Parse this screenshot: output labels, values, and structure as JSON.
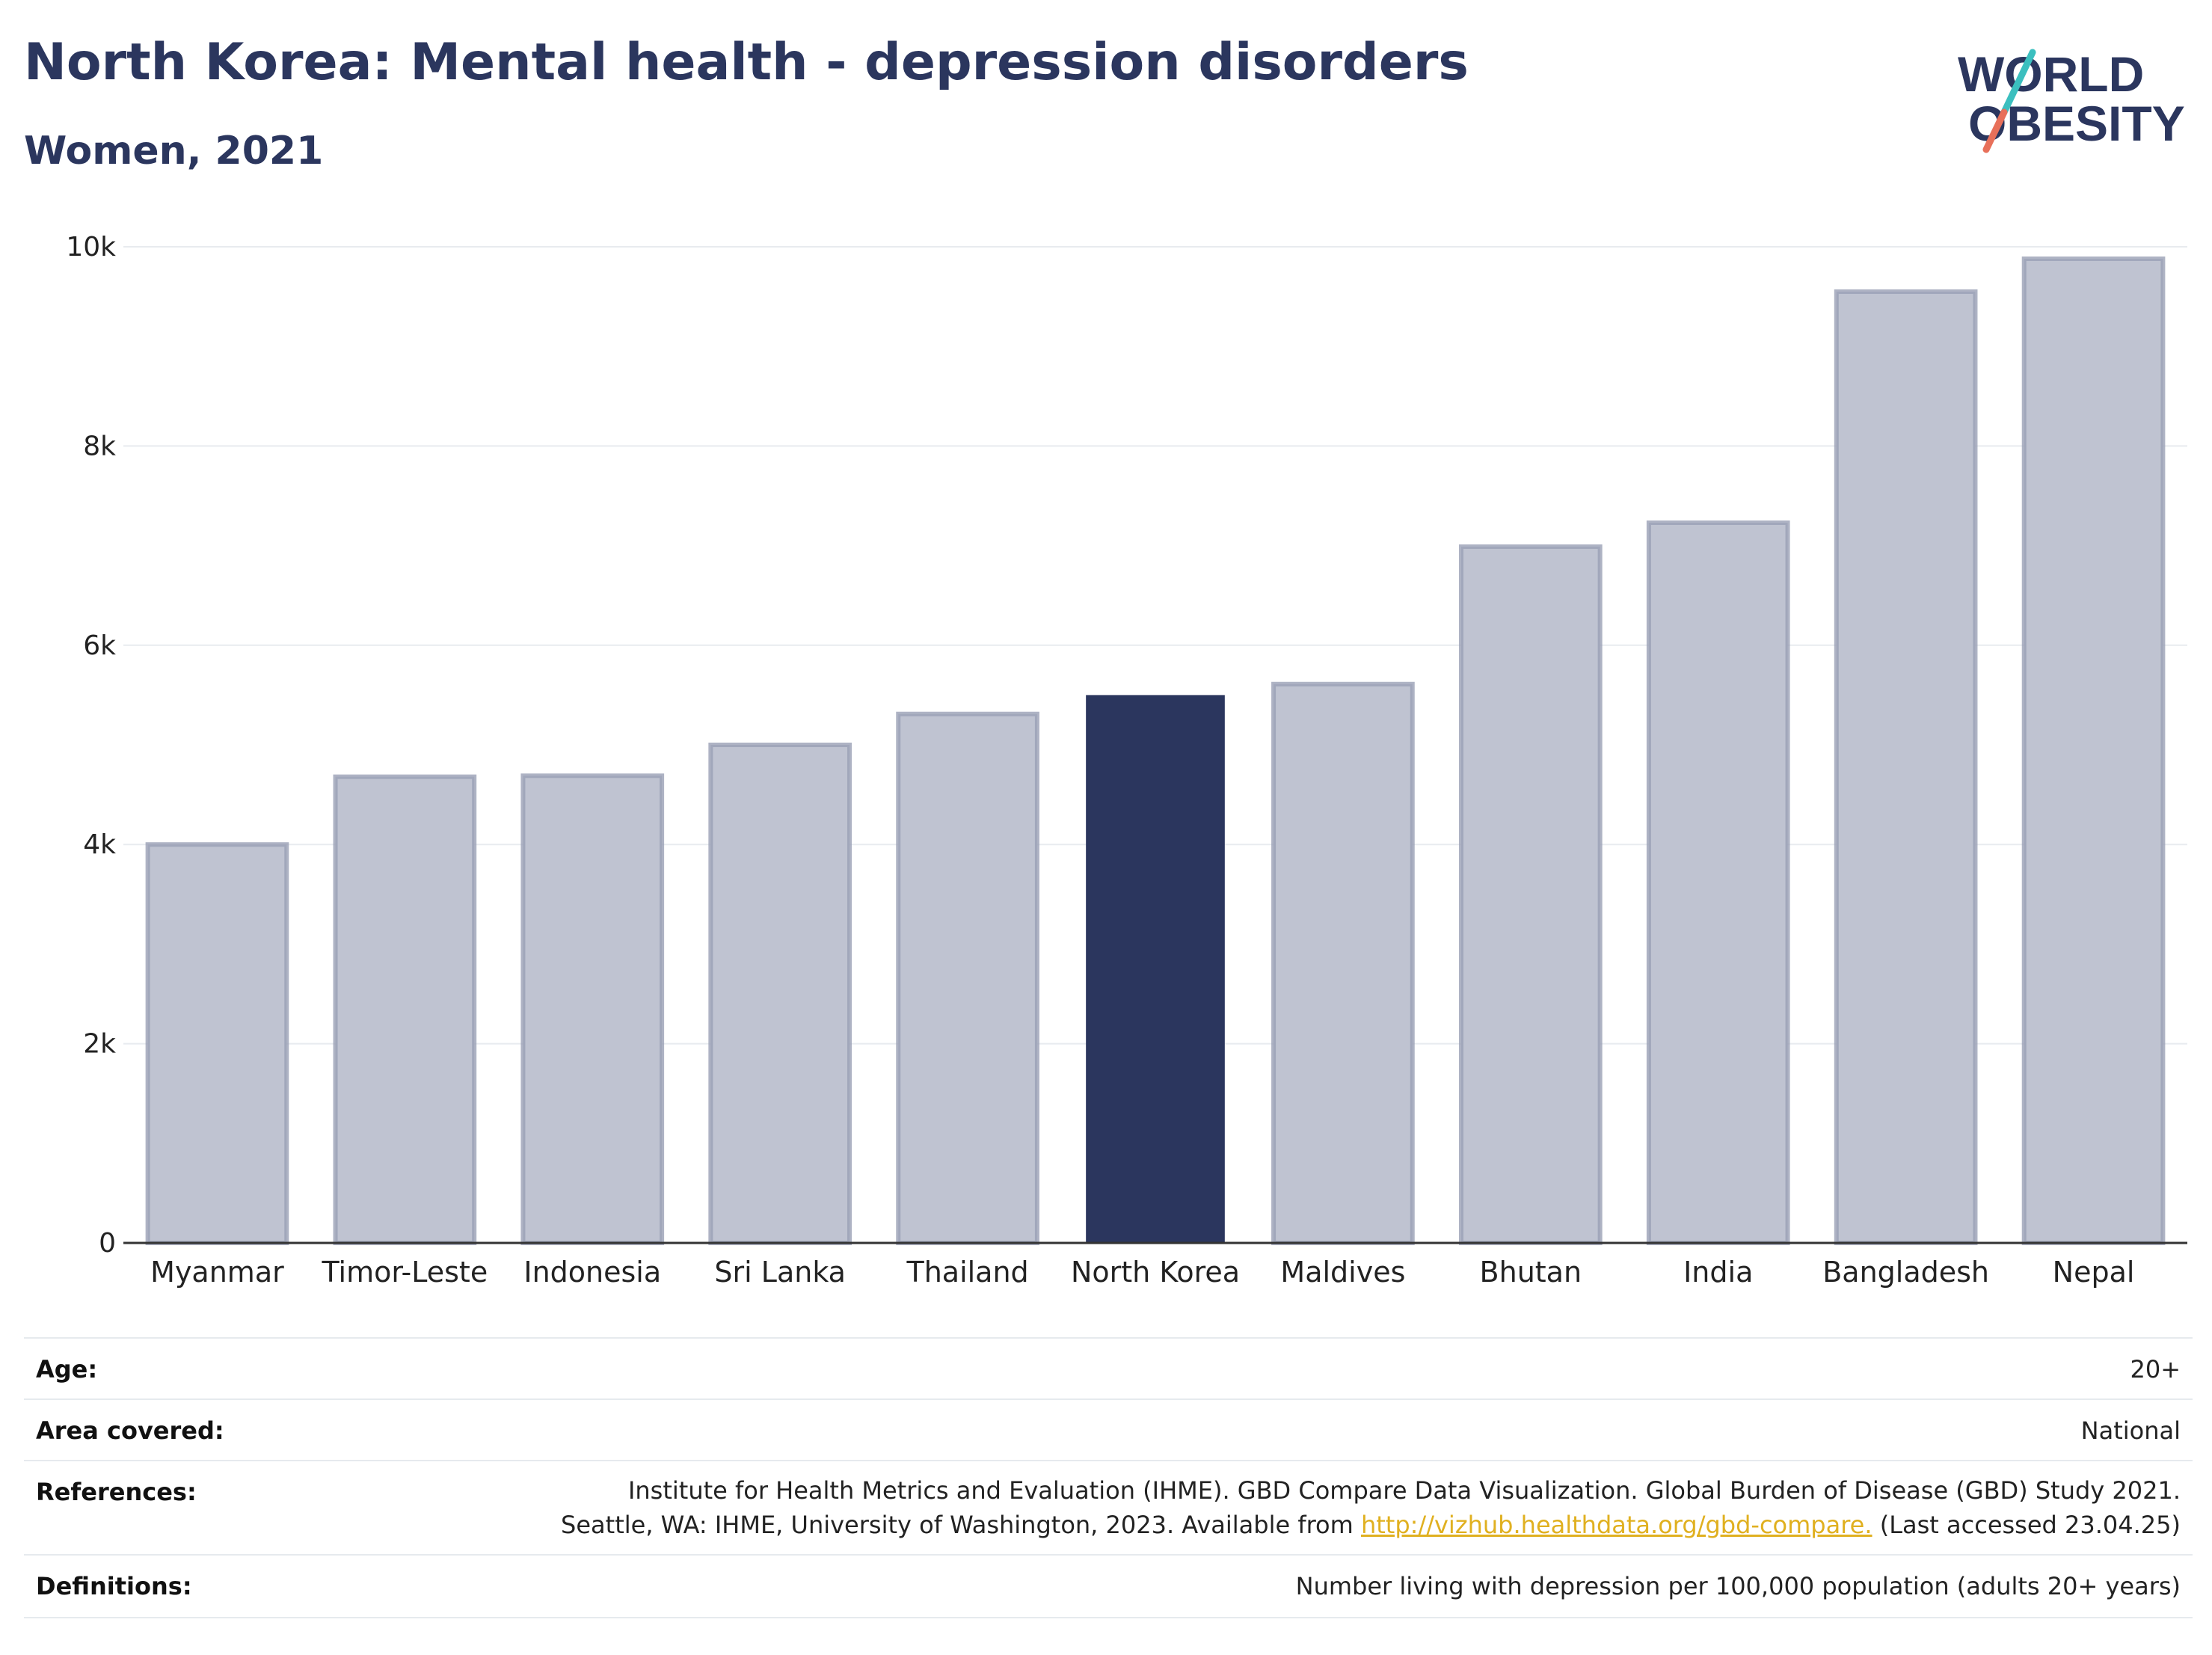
{
  "header": {
    "title": "North Korea: Mental health - depression disorders",
    "subtitle": "Women, 2021"
  },
  "logo": {
    "line1": "WORLD",
    "line2": "OBESITY",
    "colors": {
      "text": "#2b365e",
      "slash_top": "#3bbfbf",
      "slash_bottom": "#e8705a"
    }
  },
  "chart_data": {
    "type": "bar",
    "categories": [
      "Myanmar",
      "Timor-Leste",
      "Indonesia",
      "Sri Lanka",
      "Thailand",
      "North Korea",
      "Maldives",
      "Bhutan",
      "India",
      "Bangladesh",
      "Nepal"
    ],
    "values": [
      4000,
      4680,
      4690,
      5000,
      5310,
      5500,
      5610,
      6990,
      7230,
      9550,
      9880
    ],
    "highlight": "North Korea",
    "ylim": [
      0,
      10000
    ],
    "yticks": [
      0,
      2000,
      4000,
      6000,
      8000,
      10000
    ],
    "ytick_labels": [
      "0",
      "2k",
      "4k",
      "6k",
      "8k",
      "10k"
    ],
    "grid": true,
    "colors": {
      "bar": "#bfc3d1",
      "bar_edge": "#9aa0b5",
      "highlight": "#2b365e"
    }
  },
  "meta": {
    "age_label": "Age:",
    "age_value": "20+",
    "area_label": "Area covered:",
    "area_value": "National",
    "references_label": "References:",
    "references_line1": "Institute for Health Metrics and Evaluation (IHME). GBD Compare Data Visualization. Global Burden of Disease (GBD) Study 2021.",
    "references_line2_pre": "Seattle, WA: IHME, University of Washington, 2023. Available from ",
    "references_link": "http://vizhub.healthdata.org/gbd-compare.",
    "references_line2_post": " (Last accessed 23.04.25)",
    "definitions_label": "Definitions:",
    "definitions_value": "Number living with depression per 100,000 population (adults 20+ years)"
  }
}
